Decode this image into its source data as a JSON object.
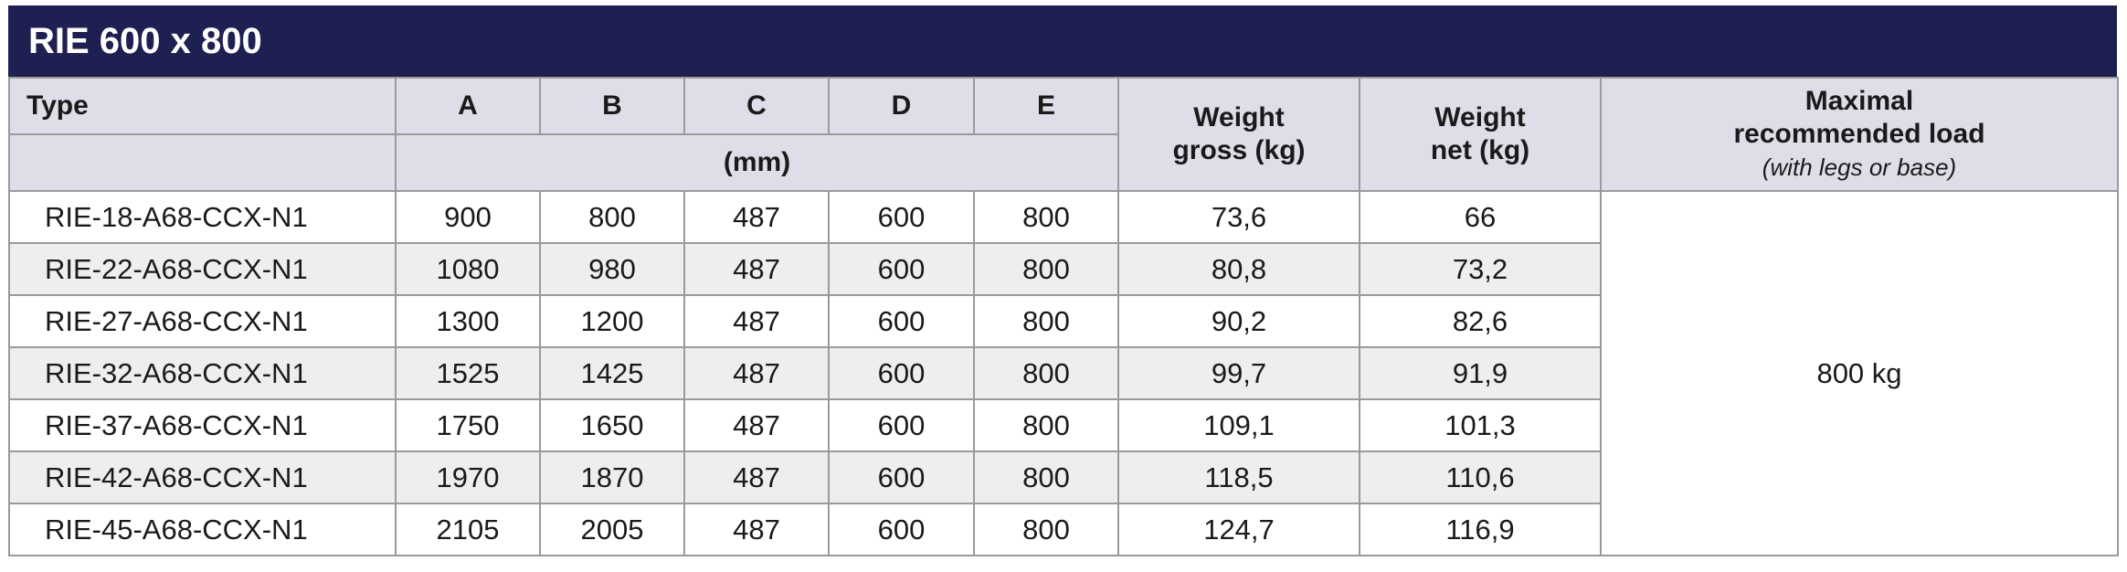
{
  "title": "RIE 600 x 800",
  "headers": {
    "type": "Type",
    "a": "A",
    "b": "B",
    "c": "C",
    "d": "D",
    "e": "E",
    "unit": "(mm)",
    "weight_gross_line1": "Weight",
    "weight_gross_line2": "gross (kg)",
    "weight_net_line1": "Weight",
    "weight_net_line2": "net (kg)",
    "max_load_line1": "Maximal",
    "max_load_line2": "recommended load",
    "max_load_note": "(with legs or base)"
  },
  "max_load_value": "800 kg",
  "rows": [
    {
      "type": "RIE-18-A68-CCX-N1",
      "a": "900",
      "b": "800",
      "c": "487",
      "d": "600",
      "e": "800",
      "gross": "73,6",
      "net": "66"
    },
    {
      "type": "RIE-22-A68-CCX-N1",
      "a": "1080",
      "b": "980",
      "c": "487",
      "d": "600",
      "e": "800",
      "gross": "80,8",
      "net": "73,2"
    },
    {
      "type": "RIE-27-A68-CCX-N1",
      "a": "1300",
      "b": "1200",
      "c": "487",
      "d": "600",
      "e": "800",
      "gross": "90,2",
      "net": "82,6"
    },
    {
      "type": "RIE-32-A68-CCX-N1",
      "a": "1525",
      "b": "1425",
      "c": "487",
      "d": "600",
      "e": "800",
      "gross": "99,7",
      "net": "91,9"
    },
    {
      "type": "RIE-37-A68-CCX-N1",
      "a": "1750",
      "b": "1650",
      "c": "487",
      "d": "600",
      "e": "800",
      "gross": "109,1",
      "net": "101,3"
    },
    {
      "type": "RIE-42-A68-CCX-N1",
      "a": "1970",
      "b": "1870",
      "c": "487",
      "d": "600",
      "e": "800",
      "gross": "118,5",
      "net": "110,6"
    },
    {
      "type": "RIE-45-A68-CCX-N1",
      "a": "2105",
      "b": "2005",
      "c": "487",
      "d": "600",
      "e": "800",
      "gross": "124,7",
      "net": "116,9"
    }
  ]
}
